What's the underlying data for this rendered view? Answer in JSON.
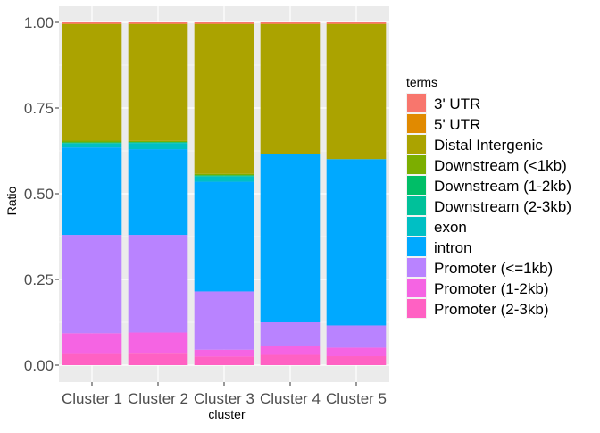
{
  "chart_data": {
    "type": "bar",
    "stacked": true,
    "xlabel": "cluster",
    "ylabel": "Ratio",
    "ylim": [
      0,
      1
    ],
    "yticks": [
      "0.00",
      "0.25",
      "0.50",
      "0.75",
      "1.00"
    ],
    "grid": true,
    "legend_position": "right",
    "legend_title": "terms",
    "categories": [
      "Cluster 1",
      "Cluster 2",
      "Cluster 3",
      "Cluster 4",
      "Cluster 5"
    ],
    "series": [
      {
        "name": "Promoter (2-3kb)",
        "color": "#FF61C3",
        "values": [
          0.035,
          0.036,
          0.025,
          0.03,
          0.026
        ]
      },
      {
        "name": "Promoter (1-2kb)",
        "color": "#F564E3",
        "values": [
          0.058,
          0.059,
          0.02,
          0.027,
          0.025
        ]
      },
      {
        "name": "Promoter (<=1kb)",
        "color": "#B983FF",
        "values": [
          0.287,
          0.285,
          0.17,
          0.068,
          0.065
        ]
      },
      {
        "name": "intron",
        "color": "#00A9FF",
        "values": [
          0.255,
          0.25,
          0.32,
          0.49,
          0.485
        ]
      },
      {
        "name": "exon",
        "color": "#00BFC4",
        "values": [
          0.012,
          0.018,
          0.015,
          0.0,
          0.0
        ]
      },
      {
        "name": "Downstream (2-3kb)",
        "color": "#00C19A",
        "values": [
          0.001,
          0.001,
          0.002,
          0.0,
          0.0
        ]
      },
      {
        "name": "Downstream (1-2kb)",
        "color": "#00BE67",
        "values": [
          0.002,
          0.002,
          0.002,
          0.0,
          0.0
        ]
      },
      {
        "name": "Downstream (<1kb)",
        "color": "#7CAE00",
        "values": [
          0.005,
          0.003,
          0.004,
          0.0,
          0.0
        ]
      },
      {
        "name": "Distal Intergenic",
        "color": "#ABA300",
        "values": [
          0.34,
          0.341,
          0.437,
          0.38,
          0.394
        ]
      },
      {
        "name": "5' UTR",
        "color": "#E18A00",
        "values": [
          0.001,
          0.001,
          0.001,
          0.001,
          0.001
        ]
      },
      {
        "name": "3' UTR",
        "color": "#F8766D",
        "values": [
          0.004,
          0.004,
          0.004,
          0.004,
          0.004
        ]
      }
    ],
    "legend_order": [
      "3' UTR",
      "5' UTR",
      "Distal Intergenic",
      "Downstream (<1kb)",
      "Downstream (1-2kb)",
      "Downstream (2-3kb)",
      "exon",
      "intron",
      "Promoter (<=1kb)",
      "Promoter (1-2kb)",
      "Promoter (2-3kb)"
    ],
    "colors": {
      "panel": "#EBEBEB",
      "grid": "#FFFFFF",
      "axis_text": "#4D4D4D"
    }
  }
}
